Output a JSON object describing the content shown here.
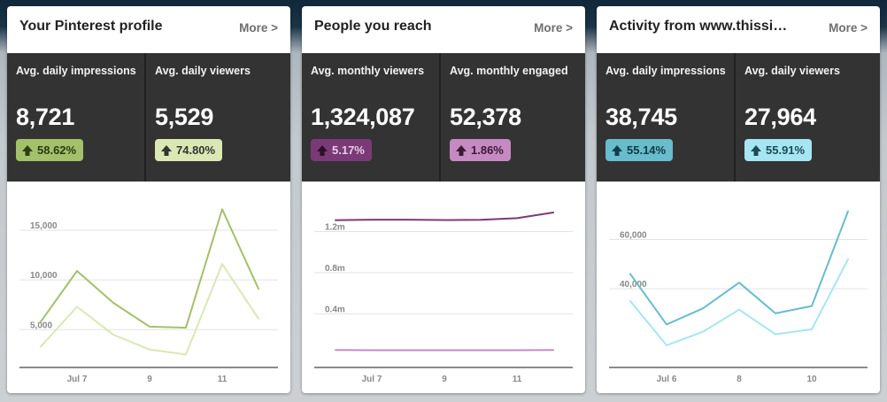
{
  "cards": [
    {
      "title": "Your Pinterest profile",
      "more_label": "More >",
      "stats": [
        {
          "label": "Avg. daily impressions",
          "value": "8,721",
          "change": "58.62%",
          "badge_bg": "#a3c16a",
          "badge_fg": "#2a3a12",
          "arrow_color": "#2f3d14"
        },
        {
          "label": "Avg. daily viewers",
          "value": "5,529",
          "change": "74.80%",
          "badge_bg": "#d9e8b4",
          "badge_fg": "#333333",
          "arrow_color": "#333333"
        }
      ]
    },
    {
      "title": "People you reach",
      "more_label": "More >",
      "stats": [
        {
          "label": "Avg. monthly viewers",
          "value": "1,324,087",
          "change": "5.17%",
          "badge_bg": "#7a3a78",
          "badge_fg": "#e8cce6",
          "arrow_color": "#2a1029"
        },
        {
          "label": "Avg. monthly engaged",
          "value": "52,378",
          "change": "1.86%",
          "badge_bg": "#c58ac1",
          "badge_fg": "#3a1a38",
          "arrow_color": "#3a1a38"
        }
      ]
    },
    {
      "title": "Activity from www.thissi…",
      "more_label": "More >",
      "stats": [
        {
          "label": "Avg. daily impressions",
          "value": "38,745",
          "change": "55.14%",
          "badge_bg": "#68bccc",
          "badge_fg": "#0e3a44",
          "arrow_color": "#123e48"
        },
        {
          "label": "Avg. daily viewers",
          "value": "27,964",
          "change": "55.91%",
          "badge_bg": "#a5e6f2",
          "badge_fg": "#1d4a54",
          "arrow_color": "#1d4a54"
        }
      ]
    }
  ],
  "chart_data": [
    {
      "type": "line",
      "x": [
        6,
        7,
        8,
        9,
        10,
        11,
        12
      ],
      "x_tick_values": [
        7,
        9,
        11
      ],
      "x_tick_labels": [
        "Jul 7",
        "9",
        "11"
      ],
      "y_tick_values": [
        5000,
        10000,
        15000
      ],
      "y_tick_labels": [
        "5,000",
        "10,000",
        "15,000"
      ],
      "ylim": [
        1200,
        19000
      ],
      "grid": true,
      "series": [
        {
          "values": [
            5800,
            10900,
            7700,
            5300,
            5200,
            17100,
            9100
          ],
          "color": "#a3c16a"
        },
        {
          "values": [
            3300,
            7300,
            4500,
            3000,
            2500,
            11600,
            6100
          ],
          "color": "#d9e8b4"
        }
      ]
    },
    {
      "type": "line",
      "x": [
        6,
        7,
        8,
        9,
        10,
        11,
        12
      ],
      "x_tick_values": [
        7,
        9,
        11
      ],
      "x_tick_labels": [
        "Jul 7",
        "9",
        "11"
      ],
      "y_tick_values": [
        400000,
        800000,
        1200000
      ],
      "y_tick_labels": [
        "0.4m",
        "0.8m",
        "1.2m"
      ],
      "ylim": [
        -120000,
        1600000
      ],
      "grid": true,
      "series": [
        {
          "values": [
            1311000,
            1315000,
            1315000,
            1312000,
            1314000,
            1330000,
            1385000
          ],
          "color": "#7a3a78"
        },
        {
          "values": [
            50000,
            48000,
            48000,
            48000,
            48000,
            48000,
            50000
          ],
          "color": "#c58ac1"
        }
      ]
    },
    {
      "type": "line",
      "x": [
        5,
        6,
        7,
        8,
        9,
        10,
        11
      ],
      "x_tick_values": [
        6,
        8,
        10
      ],
      "x_tick_labels": [
        "Jul 6",
        "8",
        "10"
      ],
      "y_tick_values": [
        40000,
        60000
      ],
      "y_tick_labels": [
        "40,000",
        "60,000"
      ],
      "ylim": [
        8000,
        80000
      ],
      "grid": true,
      "series": [
        {
          "values": [
            46000,
            25500,
            32000,
            42500,
            30000,
            33000,
            71500
          ],
          "color": "#68bccc"
        },
        {
          "values": [
            35000,
            17000,
            22500,
            31500,
            21500,
            23500,
            52000
          ],
          "color": "#a5e6f2"
        }
      ]
    }
  ]
}
